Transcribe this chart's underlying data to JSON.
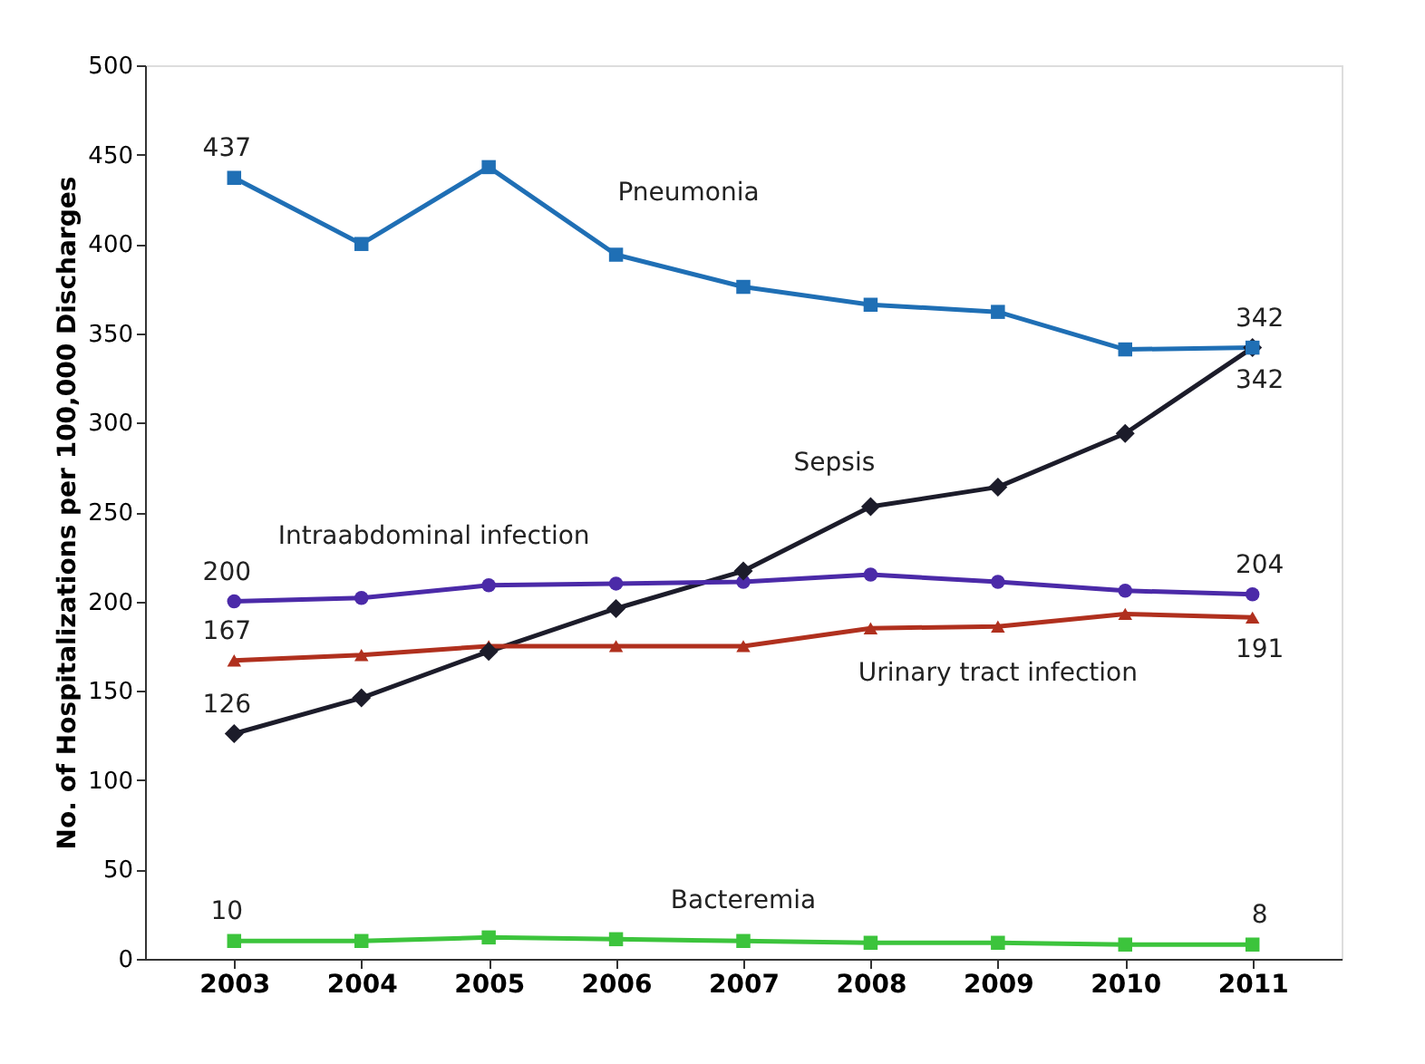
{
  "chart_data": {
    "type": "line",
    "ylabel": "No. of Hospitalizations per 100,000 Discharges",
    "categories": [
      "2003",
      "2004",
      "2005",
      "2006",
      "2007",
      "2008",
      "2009",
      "2010",
      "2011"
    ],
    "series": [
      {
        "name": "Pneumonia",
        "color": "#1f6fb5",
        "marker": "square",
        "values": [
          437,
          400,
          443,
          394,
          376,
          366,
          362,
          341,
          342
        ],
        "value_labels": [
          "437",
          null,
          null,
          null,
          null,
          null,
          null,
          null,
          "342"
        ]
      },
      {
        "name": "Sepsis",
        "color": "#1c1c2a",
        "marker": "diamond",
        "values": [
          126,
          146,
          172,
          196,
          217,
          253,
          264,
          294,
          342
        ],
        "value_labels": [
          "126",
          null,
          null,
          null,
          null,
          null,
          null,
          null,
          "342"
        ]
      },
      {
        "name": "Intraabdominal infection",
        "color": "#4b2aa8",
        "marker": "circle",
        "values": [
          200,
          202,
          209,
          210,
          211,
          215,
          211,
          206,
          204
        ],
        "value_labels": [
          "200",
          null,
          null,
          null,
          null,
          null,
          null,
          null,
          "204"
        ]
      },
      {
        "name": "Urinary tract infection",
        "color": "#b0301e",
        "marker": "triangle",
        "values": [
          167,
          170,
          175,
          175,
          175,
          185,
          186,
          193,
          191
        ],
        "value_labels": [
          "167",
          null,
          null,
          null,
          null,
          null,
          null,
          null,
          "191"
        ]
      },
      {
        "name": "Bacteremia",
        "color": "#3cc43c",
        "marker": "square",
        "values": [
          10,
          10,
          12,
          11,
          10,
          9,
          9,
          8,
          8
        ],
        "value_labels": [
          "10",
          null,
          null,
          null,
          null,
          null,
          null,
          null,
          "8"
        ]
      }
    ],
    "ylim": [
      0,
      500
    ],
    "yticks": [
      0,
      50,
      100,
      150,
      200,
      250,
      300,
      350,
      400,
      450,
      500
    ],
    "grid": false,
    "line_style": "solid"
  }
}
